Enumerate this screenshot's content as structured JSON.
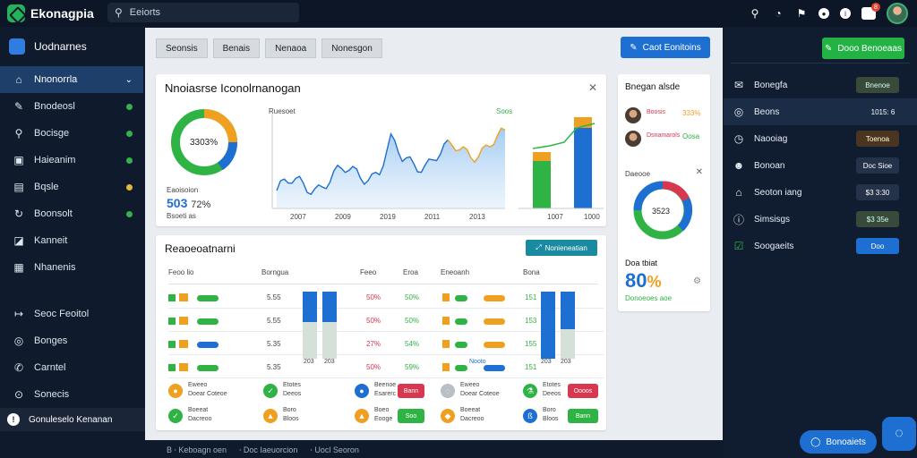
{
  "app": {
    "title": "Ekonagpia"
  },
  "search": {
    "placeholder": "Eeiorts"
  },
  "topbar": {
    "notif_count": "8"
  },
  "sidebar": {
    "header": "Uodnarnes",
    "items": [
      {
        "label": "Nnonorrla",
        "icon": "home-icon",
        "status": "",
        "active": true
      },
      {
        "label": "Bnodeosl",
        "icon": "pen-icon",
        "status": "green"
      },
      {
        "label": "Bocisge",
        "icon": "search-icon",
        "status": "green"
      },
      {
        "label": "Haieanim",
        "icon": "image-icon",
        "status": "green"
      },
      {
        "label": "Bqsle",
        "icon": "document-icon",
        "status": "yellow"
      },
      {
        "label": "Boonsolt",
        "icon": "refresh-icon",
        "status": "green"
      },
      {
        "label": "Kanneit",
        "icon": "chart-icon",
        "status": ""
      },
      {
        "label": "Nhanenis",
        "icon": "grid-icon",
        "status": ""
      }
    ],
    "items2": [
      {
        "label": "Seoc Feoitol",
        "icon": "arrow-icon"
      },
      {
        "label": "Bonges",
        "icon": "coin-icon"
      },
      {
        "label": "Carntel",
        "icon": "phone-icon"
      },
      {
        "label": "Sonecis",
        "icon": "settings-icon"
      }
    ],
    "footer": "Gonuleselo Kenanan"
  },
  "status_bar": [
    "B ⸱ Keboagn oen",
    "⸱ Doc Iaeuorcion",
    "⸱ Uocl Seoron"
  ],
  "main": {
    "tabs": [
      "Seonsis",
      "Benais",
      "Nenaoa",
      "Nonesgon"
    ],
    "primary_button": "Caot Eonitoins",
    "analytics": {
      "title": "Nnoiasrse Iconolrnanogan",
      "donut_label": "3303%",
      "stat_caption": "Eaoisoion",
      "stat_value": "503",
      "stat_percent": "72%",
      "stat_sub": "Bsoeti as",
      "chart_label": "Ruesoet",
      "chart_legend": "Soos",
      "x_ticks": [
        "2007",
        "2009",
        "2019",
        "2011",
        "2013"
      ],
      "bar_ticks": [
        "1007",
        "1000"
      ]
    },
    "table": {
      "title": "Reaoeoatnarni",
      "action_button": "Nonieneatian",
      "headers": [
        "Feoo lio",
        "Borngua",
        "Feeo",
        "Eroa",
        "Eneoanh",
        "Bona"
      ],
      "rows": [
        {
          "v1": "5.55",
          "p1": "50%",
          "p2": "50%",
          "v2": "151"
        },
        {
          "v1": "5.55",
          "p1": "50%",
          "p2": "50%",
          "v2": "153"
        },
        {
          "v1": "5.35",
          "p1": "27%",
          "p2": "54%",
          "v2": "155"
        },
        {
          "v1": "5.35",
          "p1": "50%",
          "p2": "59%",
          "v2": "151"
        }
      ],
      "bar_foot": "203",
      "rows_foot": "Nooto"
    },
    "legend_items": [
      {
        "l1": "Eweeo",
        "l2": "Doear Coteoe"
      },
      {
        "l1": "Boeeat",
        "l2": "Dacreoo"
      },
      {
        "l1": "Etotes",
        "l2": "Deeos"
      },
      {
        "l1": "Boro",
        "l2": "Bloos"
      },
      {
        "l1": "Beenoe",
        "l2": "Esarerc"
      },
      {
        "l1": "Boeo",
        "l2": "Eooge"
      }
    ],
    "legend_buttons": [
      "Bann",
      "Soo",
      "Oooos"
    ],
    "side": {
      "title": "Bnegan alsde",
      "people": [
        {
          "name": "Boosis",
          "pct": "333%"
        },
        {
          "name": "Dsnamarols",
          "pct": "Oosa"
        }
      ],
      "donut_caption": "Daeooe",
      "donut_label": "3523",
      "big_caption": "Doa tbiat",
      "big_value": "80",
      "big_pct": "%",
      "big_sub": "Donoeoes aoe"
    }
  },
  "right_panel": {
    "button": "Dooo Benoeaas",
    "items": [
      {
        "label": "Bonegfa",
        "value": "Bnenoe",
        "icon": "mail-icon",
        "style": "green"
      },
      {
        "label": "Beons",
        "value": "1015: 6",
        "icon": "target-icon",
        "style": "sel"
      },
      {
        "label": "Naooiag",
        "value": "Toenoa",
        "icon": "clock-icon",
        "style": "orange"
      },
      {
        "label": "Bonoan",
        "value": "Doc Sioe",
        "icon": "user-icon",
        "style": "dark"
      },
      {
        "label": "Seoton iang",
        "value": "$3 3:30",
        "icon": "bank-icon",
        "style": "dark"
      },
      {
        "label": "Simsisgs",
        "value": "$3 35e",
        "icon": "info-icon",
        "style": "green"
      },
      {
        "label": "Soogaeits",
        "value": "Doo",
        "icon": "checkbox-icon",
        "style": "blue"
      }
    ]
  },
  "fab": {
    "label": "Bonoaiets"
  }
}
